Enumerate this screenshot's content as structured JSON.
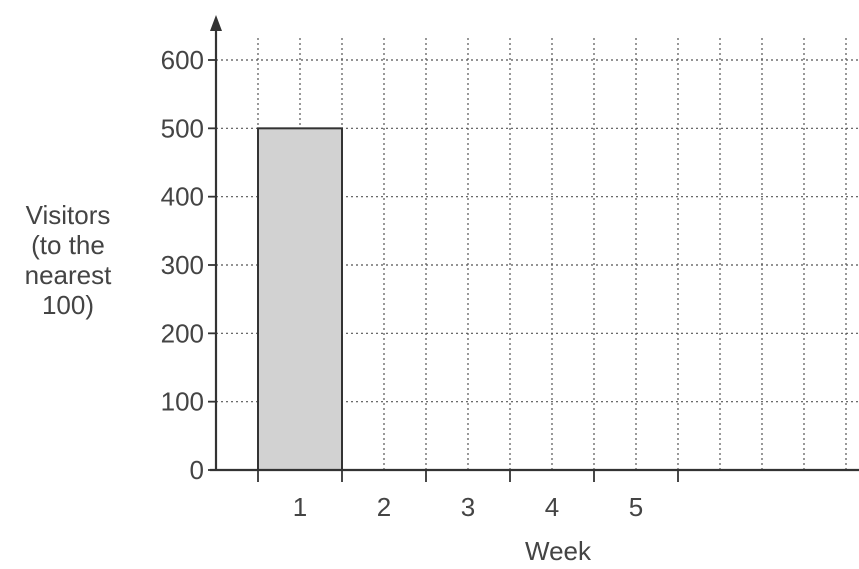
{
  "chart_data": {
    "type": "bar",
    "categories": [
      "1",
      "2",
      "3",
      "4",
      "5"
    ],
    "values": [
      500,
      null,
      null,
      null,
      null
    ],
    "xlabel": "Week",
    "ylabel_lines": [
      "Visitors",
      "(to the",
      "nearest",
      "100)"
    ],
    "ylim": [
      0,
      600
    ],
    "yticks": [
      0,
      100,
      200,
      300,
      400,
      500,
      600
    ],
    "grid": true,
    "bar_color": "#d2d2d2",
    "axis_color": "#333333"
  }
}
